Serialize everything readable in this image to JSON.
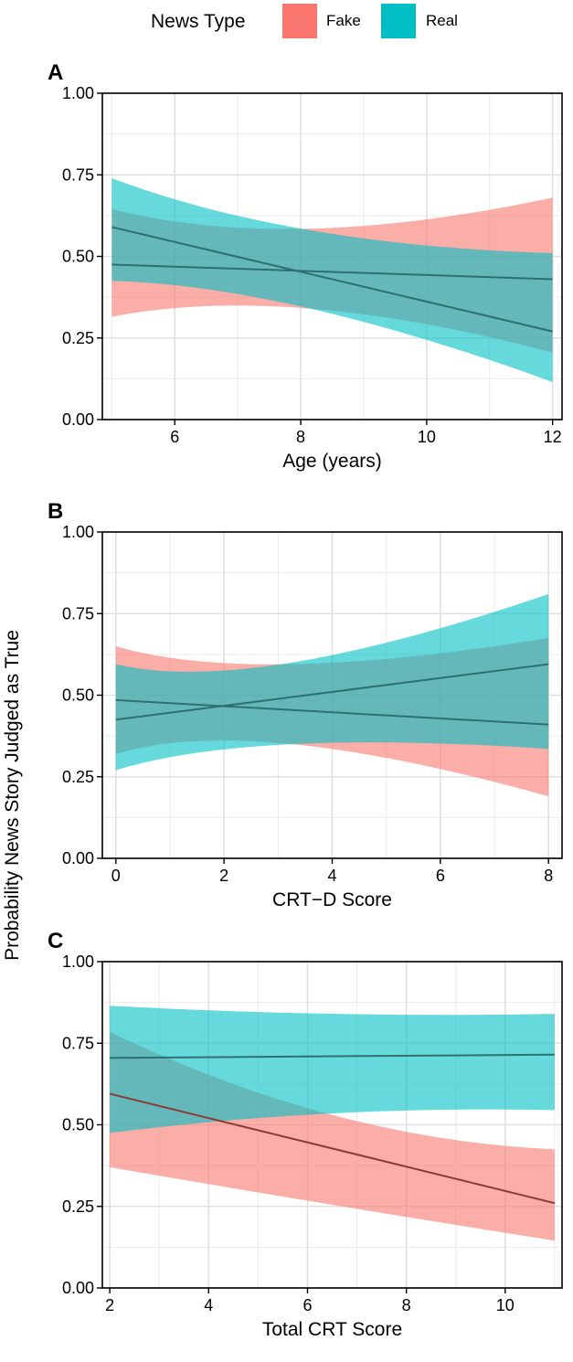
{
  "legend": {
    "title": "News Type",
    "items": [
      {
        "label": "Fake",
        "color": "#F8766D"
      },
      {
        "label": "Real",
        "color": "#00BFC4"
      }
    ]
  },
  "shared_ylabel": "Probability News Story Judged as True",
  "chart_data": [
    {
      "type": "line",
      "panel_label": "A",
      "xlabel": "Age (years)",
      "ylabel": "Probability News Story Judged as True",
      "xlim": [
        4.85,
        12.15
      ],
      "ylim": [
        0,
        1
      ],
      "xticks": [
        6,
        8,
        10,
        12
      ],
      "yticks": [
        0.0,
        0.25,
        0.5,
        0.75,
        1.0
      ],
      "ytick_labels": [
        "0.00",
        "0.25",
        "0.50",
        "0.75",
        "1.00"
      ],
      "grid": true,
      "x": [
        5,
        12
      ],
      "series": [
        {
          "name": "Fake",
          "color": "#F8766D",
          "fit": [
            0.475,
            0.43
          ],
          "lower": [
            0.315,
            0.205
          ],
          "upper": [
            0.645,
            0.68
          ],
          "mid_x": 7.8,
          "mid_lower": 0.34,
          "mid_upper": 0.585
        },
        {
          "name": "Real",
          "color": "#00BFC4",
          "fit": [
            0.59,
            0.27
          ],
          "lower": [
            0.425,
            0.115
          ],
          "upper": [
            0.74,
            0.51
          ],
          "mid_x": 7.8,
          "mid_lower": 0.34,
          "mid_upper": 0.58
        }
      ]
    },
    {
      "type": "line",
      "panel_label": "B",
      "xlabel": "CRT−D Score",
      "ylabel": "Probability News Story Judged as True",
      "xlim": [
        -0.25,
        8.25
      ],
      "ylim": [
        0,
        1
      ],
      "xticks": [
        0,
        2,
        4,
        6,
        8
      ],
      "yticks": [
        0.0,
        0.25,
        0.5,
        0.75,
        1.0
      ],
      "ytick_labels": [
        "0.00",
        "0.25",
        "0.50",
        "0.75",
        "1.00"
      ],
      "grid": true,
      "x": [
        0,
        8
      ],
      "series": [
        {
          "name": "Fake",
          "color": "#F8766D",
          "fit": [
            0.485,
            0.41
          ],
          "lower": [
            0.32,
            0.19
          ],
          "upper": [
            0.65,
            0.675
          ],
          "mid_x": 2.5,
          "mid_lower": 0.35,
          "mid_upper": 0.595
        },
        {
          "name": "Real",
          "color": "#00BFC4",
          "fit": [
            0.425,
            0.595
          ],
          "lower": [
            0.27,
            0.335
          ],
          "upper": [
            0.595,
            0.81
          ],
          "mid_x": 2.5,
          "mid_lower": 0.35,
          "mid_upper": 0.6
        }
      ]
    },
    {
      "type": "line",
      "panel_label": "C",
      "xlabel": "Total CRT Score",
      "ylabel": "Probability News Story Judged as True",
      "xlim": [
        1.85,
        11.15
      ],
      "ylim": [
        0,
        1
      ],
      "xticks": [
        2,
        4,
        6,
        8,
        10
      ],
      "yticks": [
        0.0,
        0.25,
        0.5,
        0.75,
        1.0
      ],
      "ytick_labels": [
        "0.00",
        "0.25",
        "0.50",
        "0.75",
        "1.00"
      ],
      "grid": true,
      "x": [
        2,
        11
      ],
      "series": [
        {
          "name": "Fake",
          "color": "#F8766D",
          "fit": [
            0.595,
            0.26
          ],
          "lower": [
            0.37,
            0.145
          ],
          "upper": [
            0.785,
            0.425
          ],
          "mid_x": 6.5,
          "mid_lower": 0.255,
          "mid_upper": 0.53
        },
        {
          "name": "Real",
          "color": "#00BFC4",
          "fit": [
            0.705,
            0.715
          ],
          "lower": [
            0.475,
            0.545
          ],
          "upper": [
            0.865,
            0.84
          ],
          "mid_x": 6.5,
          "mid_lower": 0.535,
          "mid_upper": 0.84
        }
      ]
    }
  ]
}
